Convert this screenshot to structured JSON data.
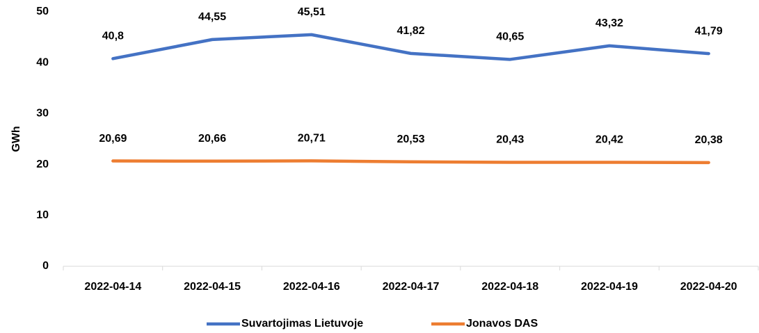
{
  "chart_data": {
    "type": "line",
    "y_label": "GWh",
    "categories": [
      "2022-04-14",
      "2022-04-15",
      "2022-04-16",
      "2022-04-17",
      "2022-04-18",
      "2022-04-19",
      "2022-04-20"
    ],
    "series": [
      {
        "name": "Suvartojimas Lietuvoje",
        "color": "#4472c4",
        "values": [
          40.8,
          44.55,
          45.51,
          41.82,
          40.65,
          43.32,
          41.79
        ],
        "value_labels": [
          "40,8",
          "44,55",
          "45,51",
          "41,82",
          "40,65",
          "43,32",
          "41,79"
        ]
      },
      {
        "name": "Jonavos DAS",
        "color": "#ed7d31",
        "values": [
          20.69,
          20.66,
          20.71,
          20.53,
          20.43,
          20.42,
          20.38
        ],
        "value_labels": [
          "20,69",
          "20,66",
          "20,71",
          "20,53",
          "20,43",
          "20,42",
          "20,38"
        ]
      }
    ],
    "ylim": [
      0,
      50
    ],
    "yticks": [
      0,
      10,
      20,
      30,
      40,
      50
    ],
    "grid": false,
    "legend": "bottom"
  }
}
